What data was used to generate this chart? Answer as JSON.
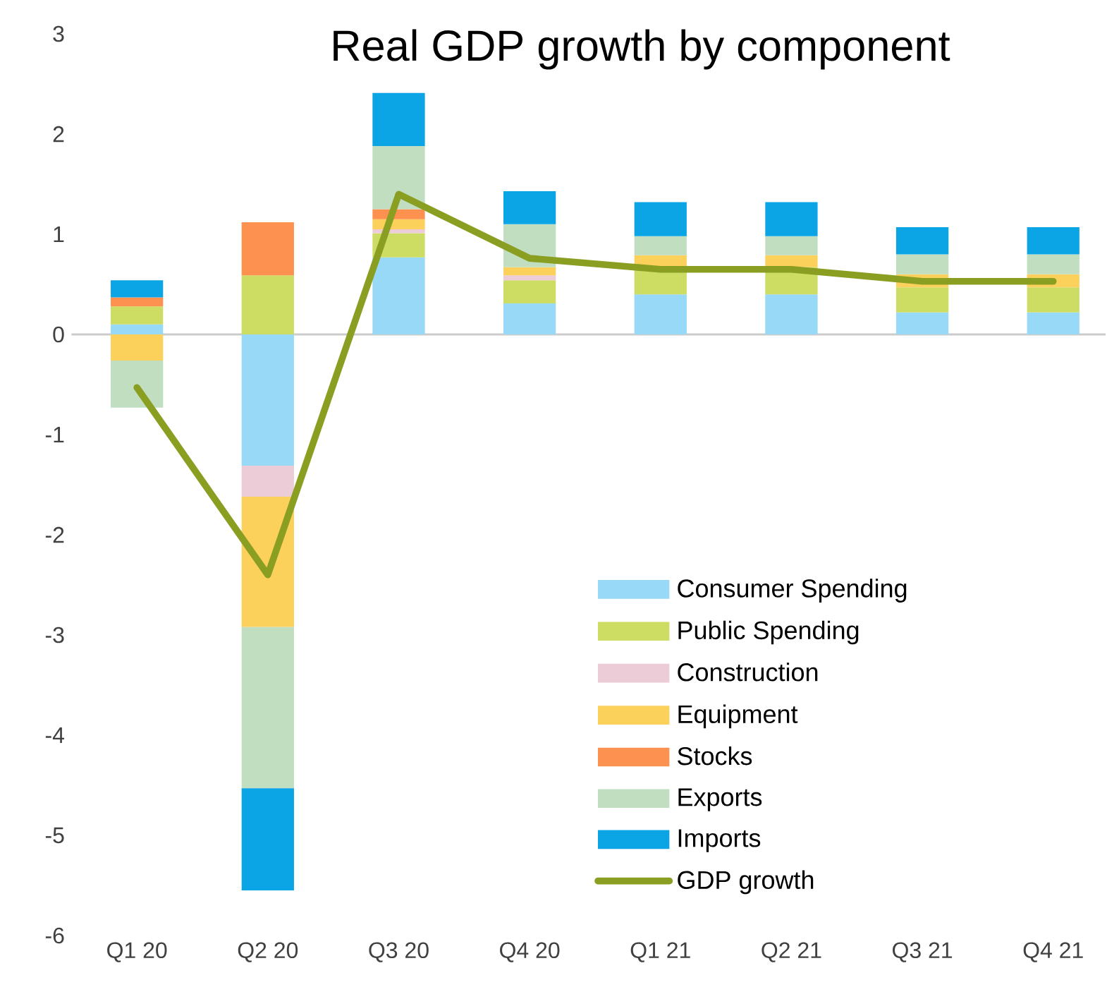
{
  "chart_data": {
    "type": "bar",
    "stacked": true,
    "title": "Real GDP growth by component",
    "categories": [
      "Q1 20",
      "Q2 20",
      "Q3 20",
      "Q4 20",
      "Q1 21",
      "Q2 21",
      "Q3 21",
      "Q4 21"
    ],
    "series": [
      {
        "name": "Consumer Spending",
        "color": "#97d9f7",
        "values": [
          0.1,
          -1.31,
          0.77,
          0.31,
          0.4,
          0.4,
          0.22,
          0.22
        ]
      },
      {
        "name": "Public Spending",
        "color": "#cddc62",
        "values": [
          0.18,
          0.59,
          0.24,
          0.23,
          0.27,
          0.27,
          0.25,
          0.25
        ]
      },
      {
        "name": "Construction",
        "color": "#ecccd6",
        "values": [
          null,
          -0.31,
          0.04,
          0.05,
          null,
          null,
          null,
          null
        ]
      },
      {
        "name": "Equipment",
        "color": "#fbd05b",
        "values": [
          -0.26,
          -1.3,
          0.1,
          0.08,
          0.12,
          0.12,
          0.13,
          0.13
        ]
      },
      {
        "name": "Stocks",
        "color": "#fd914f",
        "values": [
          0.09,
          0.53,
          0.1,
          null,
          null,
          null,
          null,
          null
        ]
      },
      {
        "name": "Exports",
        "color": "#c1dec1",
        "values": [
          -0.47,
          -1.61,
          0.63,
          0.43,
          0.19,
          0.19,
          0.2,
          0.2
        ]
      },
      {
        "name": "Imports",
        "color": "#0ba5e5",
        "values": [
          0.17,
          -1.02,
          0.53,
          0.33,
          0.34,
          0.34,
          0.27,
          0.27
        ]
      },
      {
        "name": "GDP growth",
        "type": "line",
        "color": "#8a9f22",
        "values": [
          -0.53,
          -2.4,
          1.4,
          0.76,
          0.65,
          0.65,
          0.53,
          0.53
        ]
      }
    ],
    "ylim": [
      -6,
      3
    ],
    "yticks": [
      -6,
      -5,
      -4,
      -3,
      -2,
      -1,
      0,
      1,
      2,
      3
    ],
    "legend": "bottom right"
  }
}
